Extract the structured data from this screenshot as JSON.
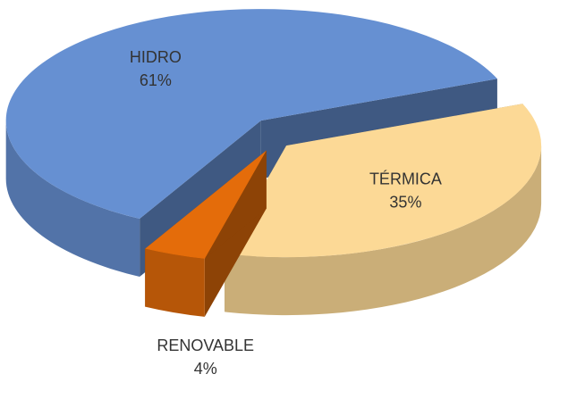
{
  "chart_data": {
    "type": "pie",
    "categories": [
      "HIDRO",
      "TÉRMICA",
      "RENOVABLE"
    ],
    "values": [
      61,
      35,
      4
    ],
    "value_labels": [
      "61%",
      "35%",
      "4%"
    ],
    "colors": [
      "#6690d2",
      "#fcd996",
      "#e46c0a"
    ]
  }
}
